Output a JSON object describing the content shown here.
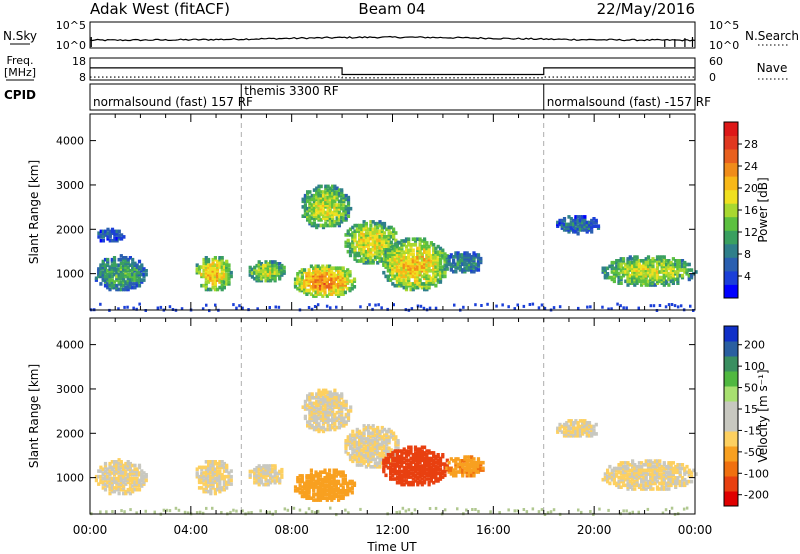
{
  "header": {
    "station": "Adak West (fitACF)",
    "beam": "Beam 04",
    "date": "22/May/2016"
  },
  "sky_panel": {
    "label": "N.Sky",
    "right_label": "N.Search",
    "left_ticks": [
      "10^5",
      "10^0"
    ],
    "right_ticks": [
      "10^5",
      "10^0"
    ]
  },
  "freq_panel": {
    "label": "Freq.",
    "unit": "[MHz]",
    "right_label": "Nave",
    "left_ticks": [
      "18",
      "8"
    ],
    "right_ticks": [
      "60",
      "0"
    ],
    "freq_steps": [
      {
        "t0": 0,
        "t1": 10,
        "v": 13.5
      },
      {
        "t0": 10,
        "t1": 18,
        "v": 10.5
      },
      {
        "t0": 18,
        "t1": 24,
        "v": 13.5
      }
    ],
    "nave_steps": [
      {
        "t0": 0,
        "t1": 10,
        "v": 8
      },
      {
        "t0": 10,
        "t1": 18,
        "v": 6
      },
      {
        "t0": 18,
        "t1": 24,
        "v": 8
      }
    ]
  },
  "cpid": {
    "label": "CPID",
    "modes": [
      {
        "name": "normalsound (fast) 157 RF",
        "t0": 0,
        "t1": 6
      },
      {
        "name": "themis 3300 RF",
        "t0": 6,
        "t1": 18
      },
      {
        "name": "normalsound (fast) -157 RF",
        "t0": 18,
        "t1": 24
      }
    ]
  },
  "chart_data": [
    {
      "type": "heatmap",
      "title": "",
      "ylabel": "Slant Range [km]",
      "xlabel": "",
      "ylim": [
        180,
        4600
      ],
      "xlim": [
        0,
        24
      ],
      "yticks": [
        "1000",
        "2000",
        "3000",
        "4000"
      ],
      "colorbar": {
        "label": "Power [dB]",
        "ticks": [
          "4",
          "8",
          "12",
          "16",
          "20",
          "24",
          "28"
        ],
        "range": [
          0,
          32
        ],
        "colors": [
          "#0000ff",
          "#1b3fd8",
          "#2a5fb0",
          "#2f7f8a",
          "#3aa060",
          "#5cc040",
          "#a8d830",
          "#f0e020",
          "#f8b818",
          "#f08c1a",
          "#e8601e",
          "#e03820",
          "#dd1818"
        ]
      },
      "features": [
        {
          "t0": 0.1,
          "t1": 2.2,
          "r0": 600,
          "r1": 1400,
          "level": 0.3
        },
        {
          "t0": 0.2,
          "t1": 1.3,
          "r0": 1700,
          "r1": 2000,
          "level": 0.15
        },
        {
          "t0": 4.1,
          "t1": 5.6,
          "r0": 600,
          "r1": 1400,
          "level": 0.55
        },
        {
          "t0": 6.2,
          "t1": 7.7,
          "r0": 800,
          "r1": 1300,
          "level": 0.45
        },
        {
          "t0": 8.0,
          "t1": 10.5,
          "r0": 450,
          "r1": 1200,
          "level": 0.65
        },
        {
          "t0": 8.3,
          "t1": 10.3,
          "r0": 2000,
          "r1": 3000,
          "level": 0.45
        },
        {
          "t0": 10.0,
          "t1": 12.2,
          "r0": 1200,
          "r1": 2200,
          "level": 0.5
        },
        {
          "t0": 11.5,
          "t1": 14.2,
          "r0": 600,
          "r1": 1800,
          "level": 0.55
        },
        {
          "t0": 14.0,
          "t1": 15.6,
          "r0": 1000,
          "r1": 1500,
          "level": 0.25
        },
        {
          "t0": 18.4,
          "t1": 20.2,
          "r0": 1900,
          "r1": 2300,
          "level": 0.2
        },
        {
          "t0": 20.2,
          "t1": 24.0,
          "r0": 700,
          "r1": 1400,
          "level": 0.45
        }
      ]
    },
    {
      "type": "heatmap",
      "title": "",
      "ylabel": "Slant Range [km]",
      "xlabel": "Time UT",
      "ylim": [
        180,
        4600
      ],
      "xlim": [
        0,
        24
      ],
      "yticks": [
        "1000",
        "2000",
        "3000",
        "4000"
      ],
      "xticks": [
        "00:00",
        "04:00",
        "08:00",
        "12:00",
        "16:00",
        "20:00",
        "00:00"
      ],
      "colorbar": {
        "label": "Velocity [m s⁻¹]",
        "ticks": [
          "200",
          "100",
          "50",
          "15",
          "-15",
          "-50",
          "-100",
          "-200"
        ],
        "range": [
          -250,
          250
        ],
        "colors": [
          "#e00000",
          "#e84010",
          "#f07010",
          "#f8a020",
          "#fdd060",
          "#c8c8c0",
          "#c8c8c0",
          "#a8e070",
          "#50b840",
          "#3a8f60",
          "#2a5fa0",
          "#1030c8"
        ]
      },
      "features": [
        {
          "t0": 0.1,
          "t1": 2.2,
          "r0": 600,
          "r1": 1400,
          "v": 0
        },
        {
          "t0": 4.1,
          "t1": 5.6,
          "r0": 600,
          "r1": 1400,
          "v": 0
        },
        {
          "t0": 6.2,
          "t1": 7.7,
          "r0": 800,
          "r1": 1300,
          "v": 0
        },
        {
          "t0": 8.0,
          "t1": 10.5,
          "r0": 450,
          "r1": 1200,
          "v": -35
        },
        {
          "t0": 8.3,
          "t1": 10.3,
          "r0": 2000,
          "r1": 3000,
          "v": 0
        },
        {
          "t0": 10.0,
          "t1": 12.2,
          "r0": 1200,
          "r1": 2200,
          "v": 0
        },
        {
          "t0": 11.5,
          "t1": 14.2,
          "r0": 800,
          "r1": 1700,
          "v": -120
        },
        {
          "t0": 14.0,
          "t1": 15.6,
          "r0": 1000,
          "r1": 1500,
          "v": -40
        },
        {
          "t0": 18.4,
          "t1": 20.2,
          "r0": 1900,
          "r1": 2300,
          "v": 0
        },
        {
          "t0": 20.2,
          "t1": 24.0,
          "r0": 700,
          "r1": 1400,
          "v": 0
        }
      ]
    }
  ]
}
